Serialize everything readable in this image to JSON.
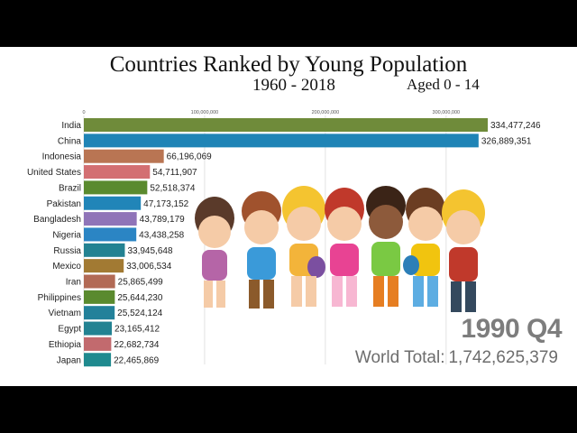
{
  "chart_data": {
    "type": "bar",
    "orientation": "horizontal",
    "title": "Countries Ranked by Young Population",
    "subtitle": "1960 - 2018",
    "age_group": "Aged 0 - 14",
    "period": "1990 Q4",
    "world_total_label": "World Total:",
    "world_total_value": "1,742,625,379",
    "xlim": [
      0,
      334477246
    ],
    "x_ticks": [
      0,
      100000000,
      200000000,
      300000000
    ],
    "x_tick_labels": [
      "0",
      "100,000,000",
      "200,000,000",
      "300,000,000"
    ],
    "grid": true,
    "categories": [
      "India",
      "China",
      "Indonesia",
      "United States",
      "Brazil",
      "Pakistan",
      "Bangladesh",
      "Nigeria",
      "Russia",
      "Mexico",
      "Iran",
      "Philippines",
      "Vietnam",
      "Egypt",
      "Ethiopia",
      "Japan"
    ],
    "values": [
      334477246,
      326889351,
      66196069,
      54711907,
      52518374,
      47173152,
      43789179,
      43438258,
      33945648,
      33006534,
      25865499,
      25644230,
      25524124,
      23165412,
      22682734,
      22465869
    ],
    "value_labels": [
      "334,477,246",
      "326,889,351",
      "66,196,069",
      "54,711,907",
      "52,518,374",
      "47,173,152",
      "43,789,179",
      "43,438,258",
      "33,945,648",
      "33,006,534",
      "25,865,499",
      "25,644,230",
      "25,524,124",
      "23,165,412",
      "22,682,734",
      "22,465,869"
    ],
    "colors": [
      "#6f8b3a",
      "#1f84b6",
      "#b97553",
      "#d36f72",
      "#5a8a2e",
      "#2185b8",
      "#8f74b8",
      "#2b85c4",
      "#238292",
      "#a27a33",
      "#b26a55",
      "#5a8a2e",
      "#23819a",
      "#238292",
      "#c26a6e",
      "#1f8a8f"
    ]
  }
}
